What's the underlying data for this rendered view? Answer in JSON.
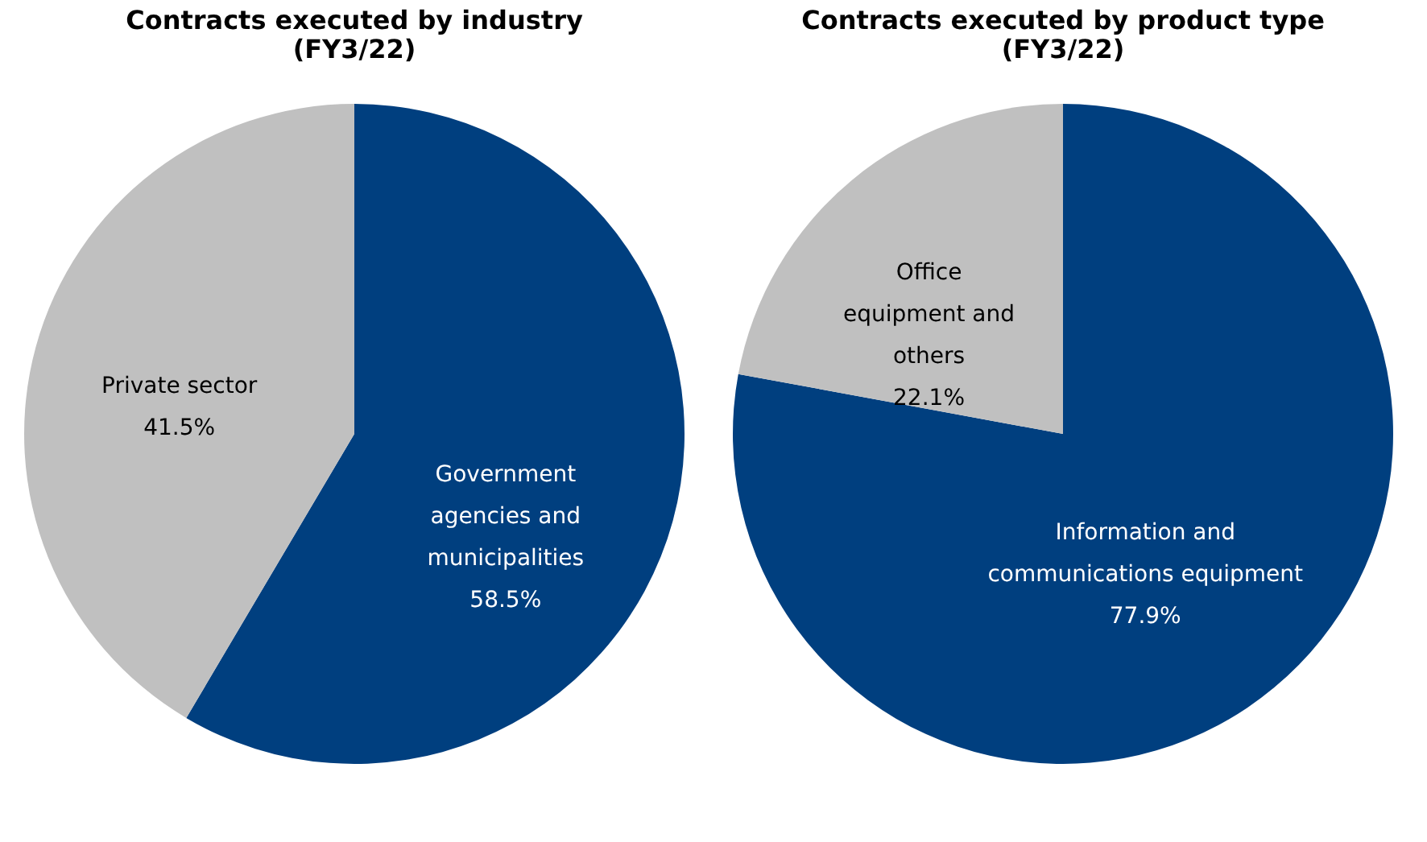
{
  "chart_data": [
    {
      "type": "pie",
      "title": "Contracts executed by industry (FY3/22)",
      "categories": [
        "Government agencies and municipalities",
        "Private sector"
      ],
      "values": [
        58.5,
        41.5
      ],
      "colors": [
        "#003f7f",
        "#c0c0c0"
      ],
      "value_labels": [
        "58.5%",
        "41.5%"
      ]
    },
    {
      "type": "pie",
      "title": "Contracts executed by product type (FY3/22)",
      "categories": [
        "Information and communications equipment",
        "Office equipment and others"
      ],
      "values": [
        77.9,
        22.1
      ],
      "colors": [
        "#003f7f",
        "#c0c0c0"
      ],
      "value_labels": [
        "77.9%",
        "22.1%"
      ]
    }
  ]
}
